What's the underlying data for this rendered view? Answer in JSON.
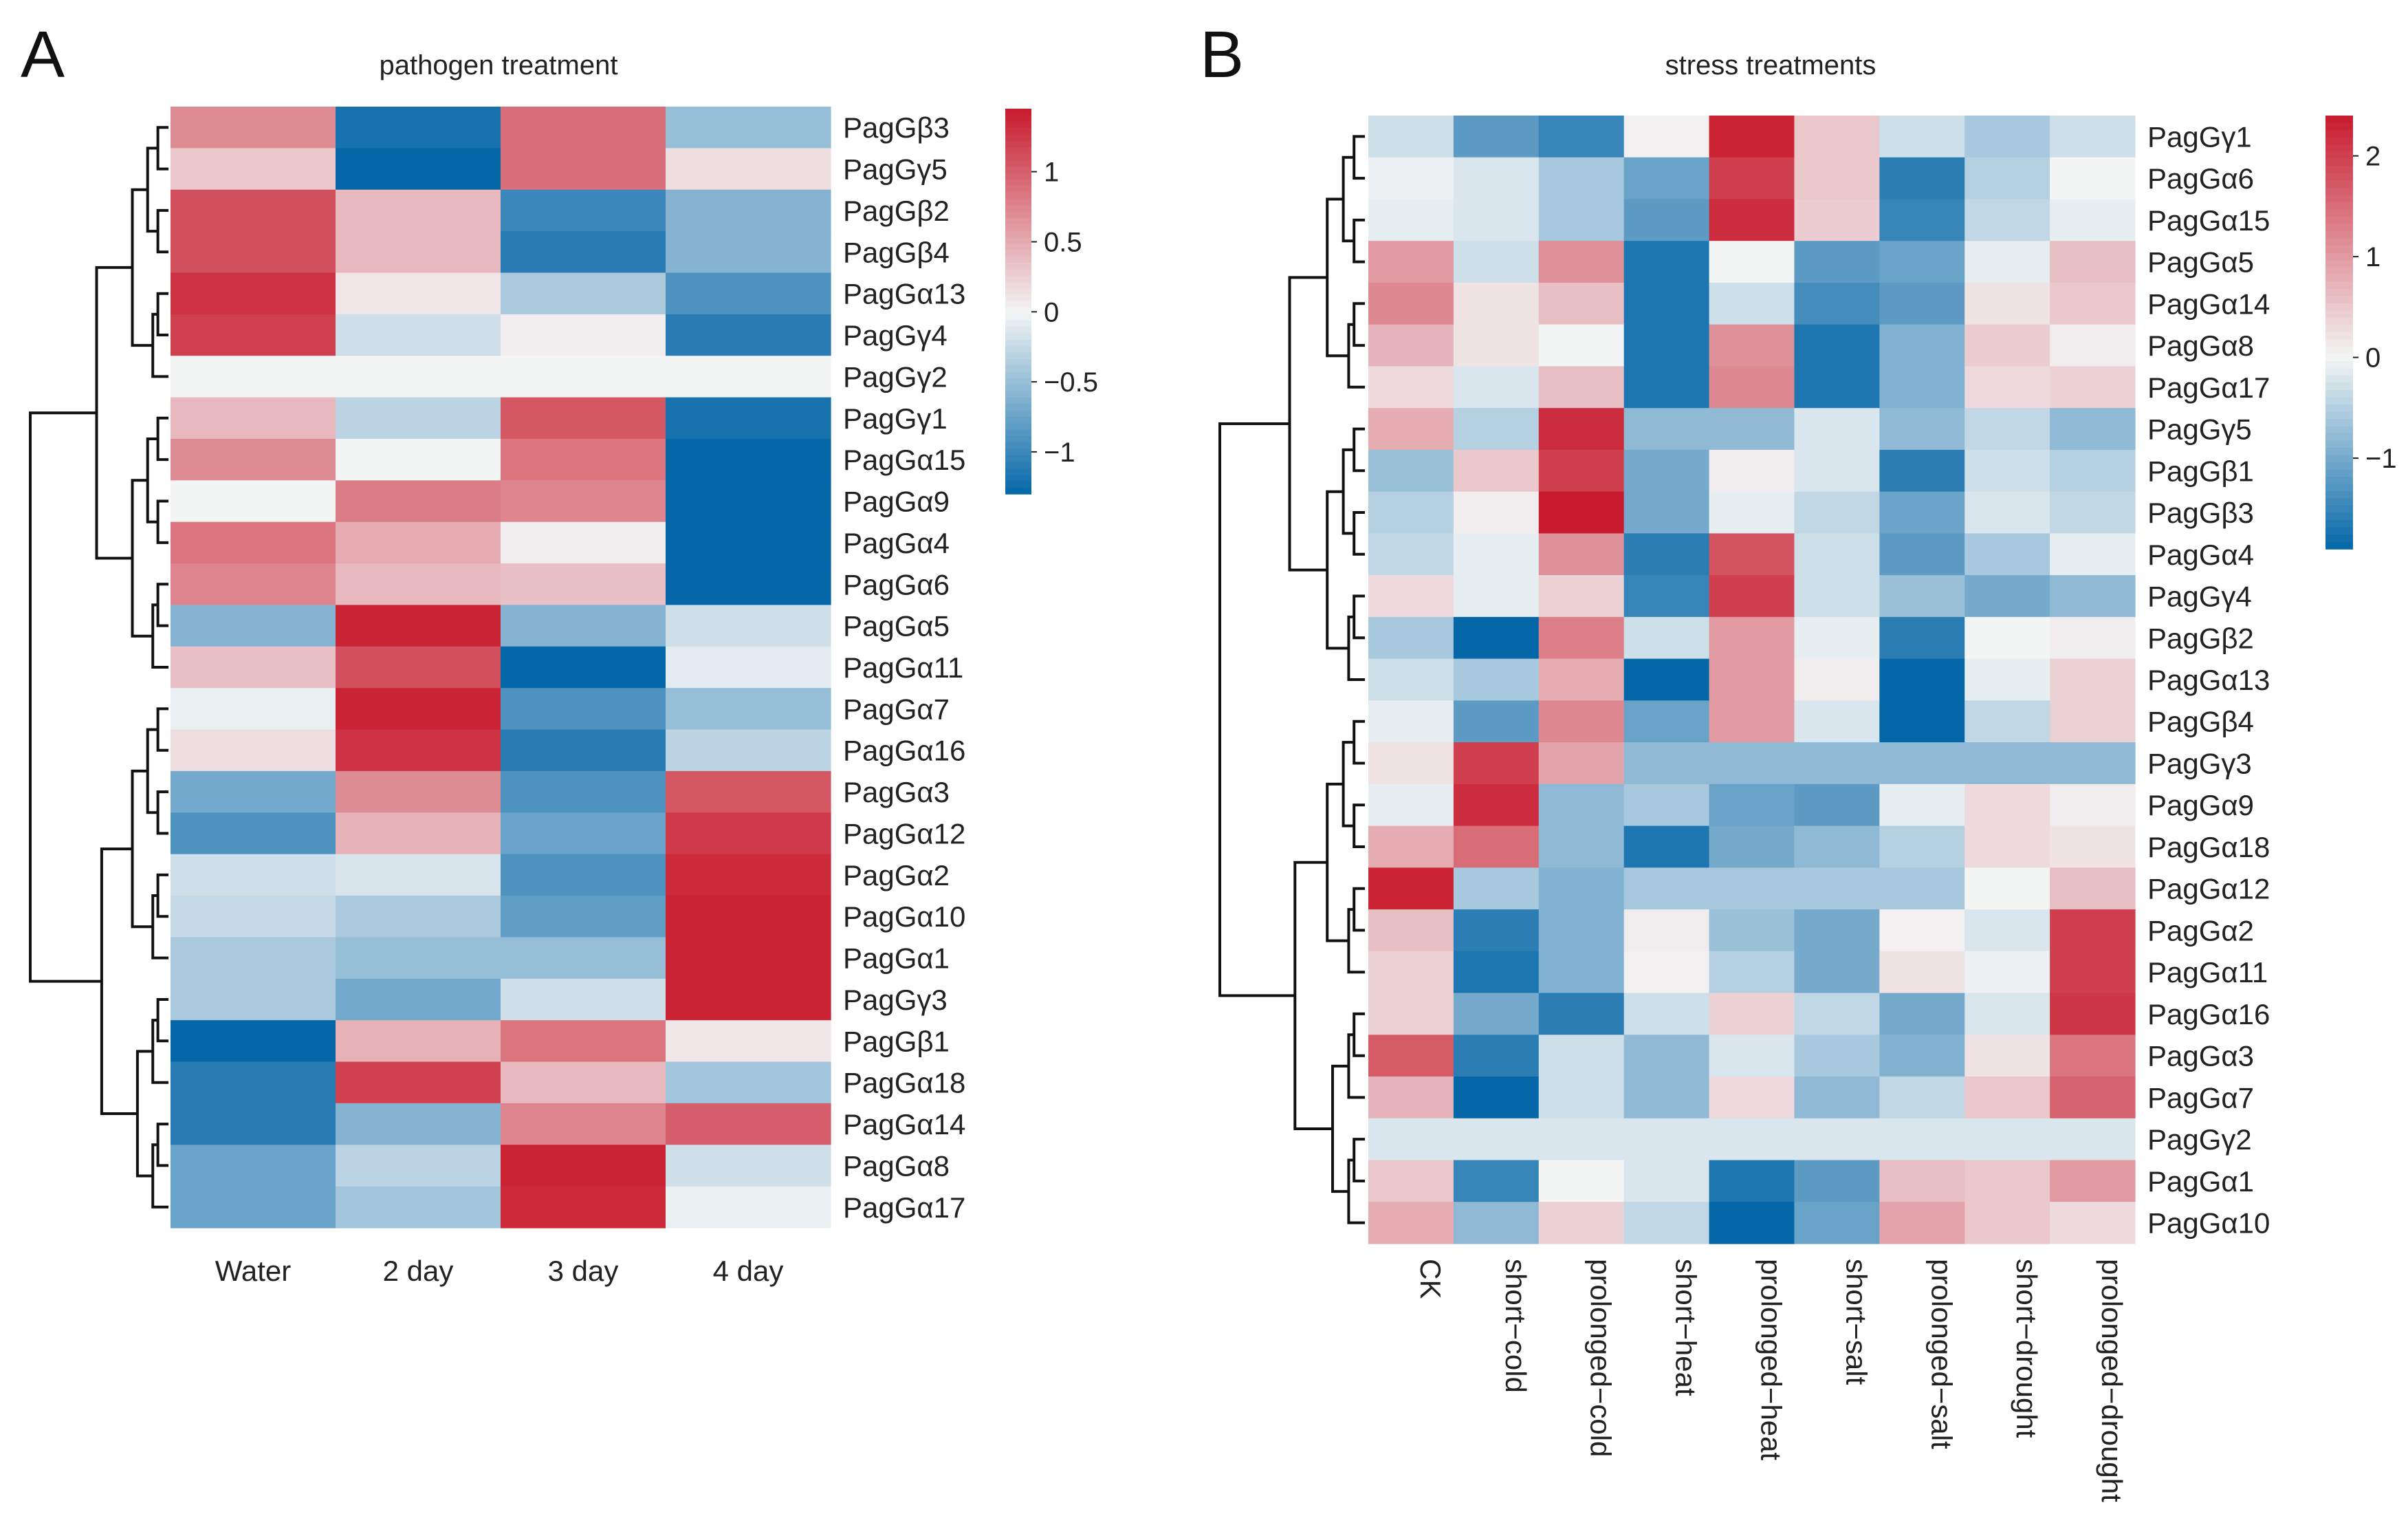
{
  "chart_data": [
    {
      "type": "heatmap",
      "panel_label": "A",
      "title": "pathogen treatment",
      "columns": [
        "Water",
        "2 day",
        "3 day",
        "4 day"
      ],
      "rows": [
        "PagGβ3",
        "PagGγ5",
        "PagGβ2",
        "PagGβ4",
        "PagGα13",
        "PagGγ4",
        "PagGγ2",
        "PagGγ1",
        "PagGα15",
        "PagGα9",
        "PagGα4",
        "PagGα6",
        "PagGα5",
        "PagGα11",
        "PagGα7",
        "PagGα16",
        "PagGα3",
        "PagGα12",
        "PagGα2",
        "PagGα10",
        "PagGα1",
        "PagGγ3",
        "PagGβ1",
        "PagGα18",
        "PagGα14",
        "PagGα8",
        "PagGα17"
      ],
      "values": [
        [
          0.7,
          -1.2,
          0.9,
          -0.5
        ],
        [
          0.3,
          -1.3,
          0.9,
          0.15
        ],
        [
          1.1,
          0.4,
          -1.0,
          -0.6
        ],
        [
          1.1,
          0.4,
          -1.1,
          -0.6
        ],
        [
          1.3,
          0.1,
          -0.4,
          -0.9
        ],
        [
          1.2,
          -0.2,
          0.05,
          -1.1
        ],
        [
          0.0,
          0.0,
          0.0,
          0.0
        ],
        [
          0.4,
          -0.3,
          1.05,
          -1.2
        ],
        [
          0.7,
          0.0,
          0.85,
          -1.3
        ],
        [
          0.0,
          0.8,
          0.75,
          -1.3
        ],
        [
          0.85,
          0.5,
          0.05,
          -1.3
        ],
        [
          0.75,
          0.4,
          0.35,
          -1.35
        ],
        [
          -0.6,
          1.4,
          -0.6,
          -0.2
        ],
        [
          0.35,
          1.1,
          -1.3,
          -0.1
        ],
        [
          -0.05,
          1.4,
          -0.9,
          -0.5
        ],
        [
          0.15,
          1.3,
          -1.1,
          -0.3
        ],
        [
          -0.7,
          0.7,
          -0.9,
          1.05
        ],
        [
          -0.9,
          0.45,
          -0.75,
          1.25
        ],
        [
          -0.2,
          -0.15,
          -0.9,
          1.35
        ],
        [
          -0.25,
          -0.4,
          -0.8,
          1.4
        ],
        [
          -0.4,
          -0.5,
          -0.5,
          1.4
        ],
        [
          -0.4,
          -0.7,
          -0.2,
          1.4
        ],
        [
          -1.35,
          0.45,
          0.85,
          0.1
        ],
        [
          -1.1,
          1.2,
          0.4,
          -0.45
        ],
        [
          -1.1,
          -0.6,
          0.75,
          1.0
        ],
        [
          -0.75,
          -0.3,
          1.4,
          -0.2
        ],
        [
          -0.75,
          -0.45,
          1.35,
          -0.05
        ]
      ],
      "color_range": [
        -1.3,
        1.45
      ],
      "colorbar_ticks": [
        1,
        0.5,
        0,
        -0.5,
        -1
      ],
      "colorbar_tick_labels": [
        "1",
        "0.5",
        "0",
        "−0.5",
        "−1"
      ],
      "colors": {
        "low": "#0567a8",
        "mid": "#f3f5f5",
        "high": "#c81b2d"
      }
    },
    {
      "type": "heatmap",
      "panel_label": "B",
      "title": "stress treatments",
      "columns": [
        "CK",
        "short−cold",
        "prolonged−cold",
        "short−heat",
        "prolonged−heat",
        "short−salt",
        "prolonged−salt",
        "short−drought",
        "prolonged−drought"
      ],
      "rows": [
        "PagGγ1",
        "PagGα6",
        "PagGα15",
        "PagGα5",
        "PagGα14",
        "PagGα8",
        "PagGα17",
        "PagGγ5",
        "PagGβ1",
        "PagGβ3",
        "PagGα4",
        "PagGγ4",
        "PagGβ2",
        "PagGα13",
        "PagGβ4",
        "PagGγ3",
        "PagGα9",
        "PagGα18",
        "PagGα12",
        "PagGα2",
        "PagGα11",
        "PagGα16",
        "PagGα3",
        "PagGα7",
        "PagGγ2",
        "PagGα1",
        "PagGα10"
      ],
      "values": [
        [
          -0.3,
          -1.2,
          -1.5,
          0.05,
          2.3,
          0.5,
          -0.3,
          -0.6,
          -0.3
        ],
        [
          -0.05,
          -0.2,
          -0.6,
          -1.1,
          2.0,
          0.5,
          -1.6,
          -0.5,
          0.0
        ],
        [
          -0.1,
          -0.2,
          -0.6,
          -1.2,
          2.2,
          0.45,
          -1.5,
          -0.4,
          -0.1
        ],
        [
          1.0,
          -0.3,
          1.1,
          -1.7,
          0.0,
          -1.2,
          -1.1,
          -0.1,
          0.6
        ],
        [
          1.2,
          0.2,
          0.6,
          -1.7,
          -0.3,
          -1.4,
          -1.2,
          0.2,
          0.5
        ],
        [
          0.7,
          0.2,
          0.0,
          -1.7,
          1.1,
          -1.7,
          -0.9,
          0.45,
          0.1
        ],
        [
          0.3,
          -0.2,
          0.6,
          -1.7,
          1.2,
          -1.7,
          -0.9,
          0.3,
          0.4
        ],
        [
          0.8,
          -0.5,
          2.2,
          -0.8,
          -0.8,
          -0.2,
          -0.8,
          -0.4,
          -0.8
        ],
        [
          -0.7,
          0.5,
          2.0,
          -1.0,
          0.1,
          -0.2,
          -1.6,
          -0.3,
          -0.5
        ],
        [
          -0.5,
          0.1,
          2.4,
          -1.0,
          -0.1,
          -0.4,
          -1.1,
          -0.2,
          -0.4
        ],
        [
          -0.4,
          -0.1,
          1.1,
          -1.6,
          1.8,
          -0.3,
          -1.2,
          -0.6,
          -0.1
        ],
        [
          0.3,
          -0.1,
          0.4,
          -1.5,
          2.0,
          -0.3,
          -0.7,
          -1.0,
          -0.8
        ],
        [
          -0.6,
          -1.9,
          1.3,
          -0.3,
          1.0,
          -0.1,
          -1.6,
          0.0,
          0.1
        ],
        [
          -0.3,
          -0.6,
          0.8,
          -1.9,
          1.0,
          0.1,
          -1.9,
          -0.1,
          0.4
        ],
        [
          -0.1,
          -1.2,
          1.2,
          -1.1,
          1.0,
          -0.2,
          -1.9,
          -0.4,
          0.4
        ],
        [
          0.2,
          2.0,
          0.9,
          -0.8,
          -0.8,
          -0.8,
          -0.8,
          -0.8,
          -0.8
        ],
        [
          -0.1,
          2.2,
          -0.8,
          -0.6,
          -1.1,
          -1.2,
          -0.1,
          0.3,
          0.1
        ],
        [
          0.8,
          1.5,
          -0.8,
          -1.7,
          -1.0,
          -0.8,
          -0.5,
          0.3,
          0.2
        ],
        [
          2.3,
          -0.6,
          -0.9,
          -0.6,
          -0.6,
          -0.6,
          -0.6,
          0.0,
          0.6
        ],
        [
          0.6,
          -1.6,
          -0.9,
          0.1,
          -0.7,
          -1.0,
          0.05,
          -0.2,
          2.0
        ],
        [
          0.4,
          -1.7,
          -0.9,
          0.05,
          -0.5,
          -1.0,
          0.2,
          -0.05,
          2.0
        ],
        [
          0.4,
          -1.0,
          -1.6,
          -0.3,
          0.4,
          -0.4,
          -1.0,
          -0.2,
          2.1
        ],
        [
          1.7,
          -1.6,
          -0.3,
          -0.8,
          -0.2,
          -0.6,
          -0.9,
          0.2,
          1.4
        ],
        [
          0.7,
          -1.9,
          -0.3,
          -0.8,
          0.3,
          -0.8,
          -0.4,
          0.5,
          1.6
        ],
        [
          -0.2,
          -0.2,
          -0.2,
          -0.2,
          -0.2,
          -0.2,
          -0.2,
          -0.2,
          -0.2
        ],
        [
          0.5,
          -1.5,
          0.0,
          -0.2,
          -1.7,
          -1.2,
          0.6,
          0.5,
          1.0
        ],
        [
          0.8,
          -0.8,
          0.4,
          -0.4,
          -1.9,
          -1.1,
          0.9,
          0.5,
          0.3
        ]
      ],
      "color_range": [
        -1.9,
        2.4
      ],
      "colorbar_ticks": [
        2,
        1,
        0,
        -1
      ],
      "colorbar_tick_labels": [
        "2",
        "1",
        "0",
        "−1"
      ],
      "colors": {
        "low": "#0567a8",
        "mid": "#f3f5f5",
        "high": "#c81b2d"
      }
    }
  ]
}
